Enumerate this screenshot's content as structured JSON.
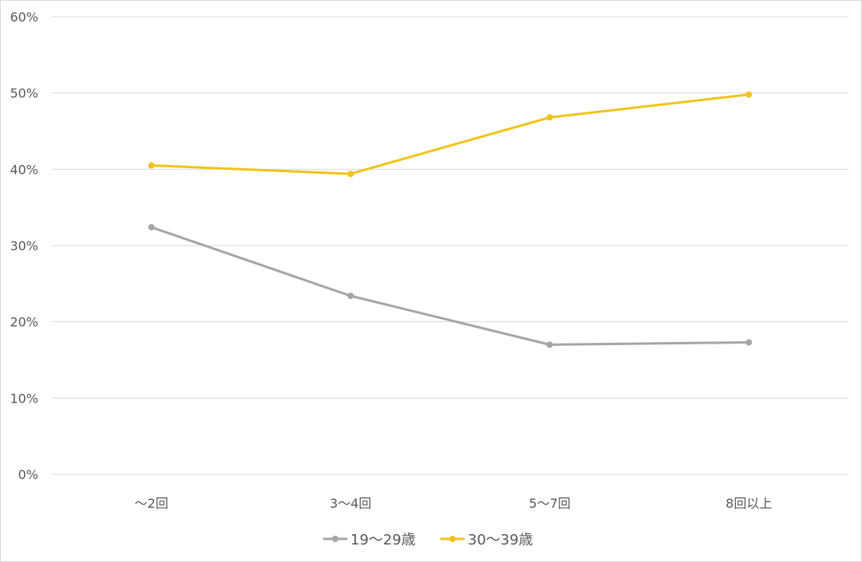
{
  "chart_data": {
    "type": "line",
    "title": "",
    "xlabel": "",
    "ylabel": "",
    "categories": [
      "〜2回",
      "3〜4回",
      "5〜7回",
      "8回以上"
    ],
    "series": [
      {
        "name": "19〜29歳",
        "color": "#a5a5a5",
        "values": [
          32.4,
          23.4,
          17.0,
          17.3
        ]
      },
      {
        "name": "30〜39歳",
        "color": "#f2c318",
        "values": [
          40.5,
          39.4,
          46.8,
          49.8
        ]
      }
    ],
    "ylim": [
      0,
      60
    ],
    "yticks": [
      "0%",
      "10%",
      "20%",
      "30%",
      "40%",
      "50%",
      "60%"
    ],
    "grid": true,
    "legend": "bottom"
  }
}
